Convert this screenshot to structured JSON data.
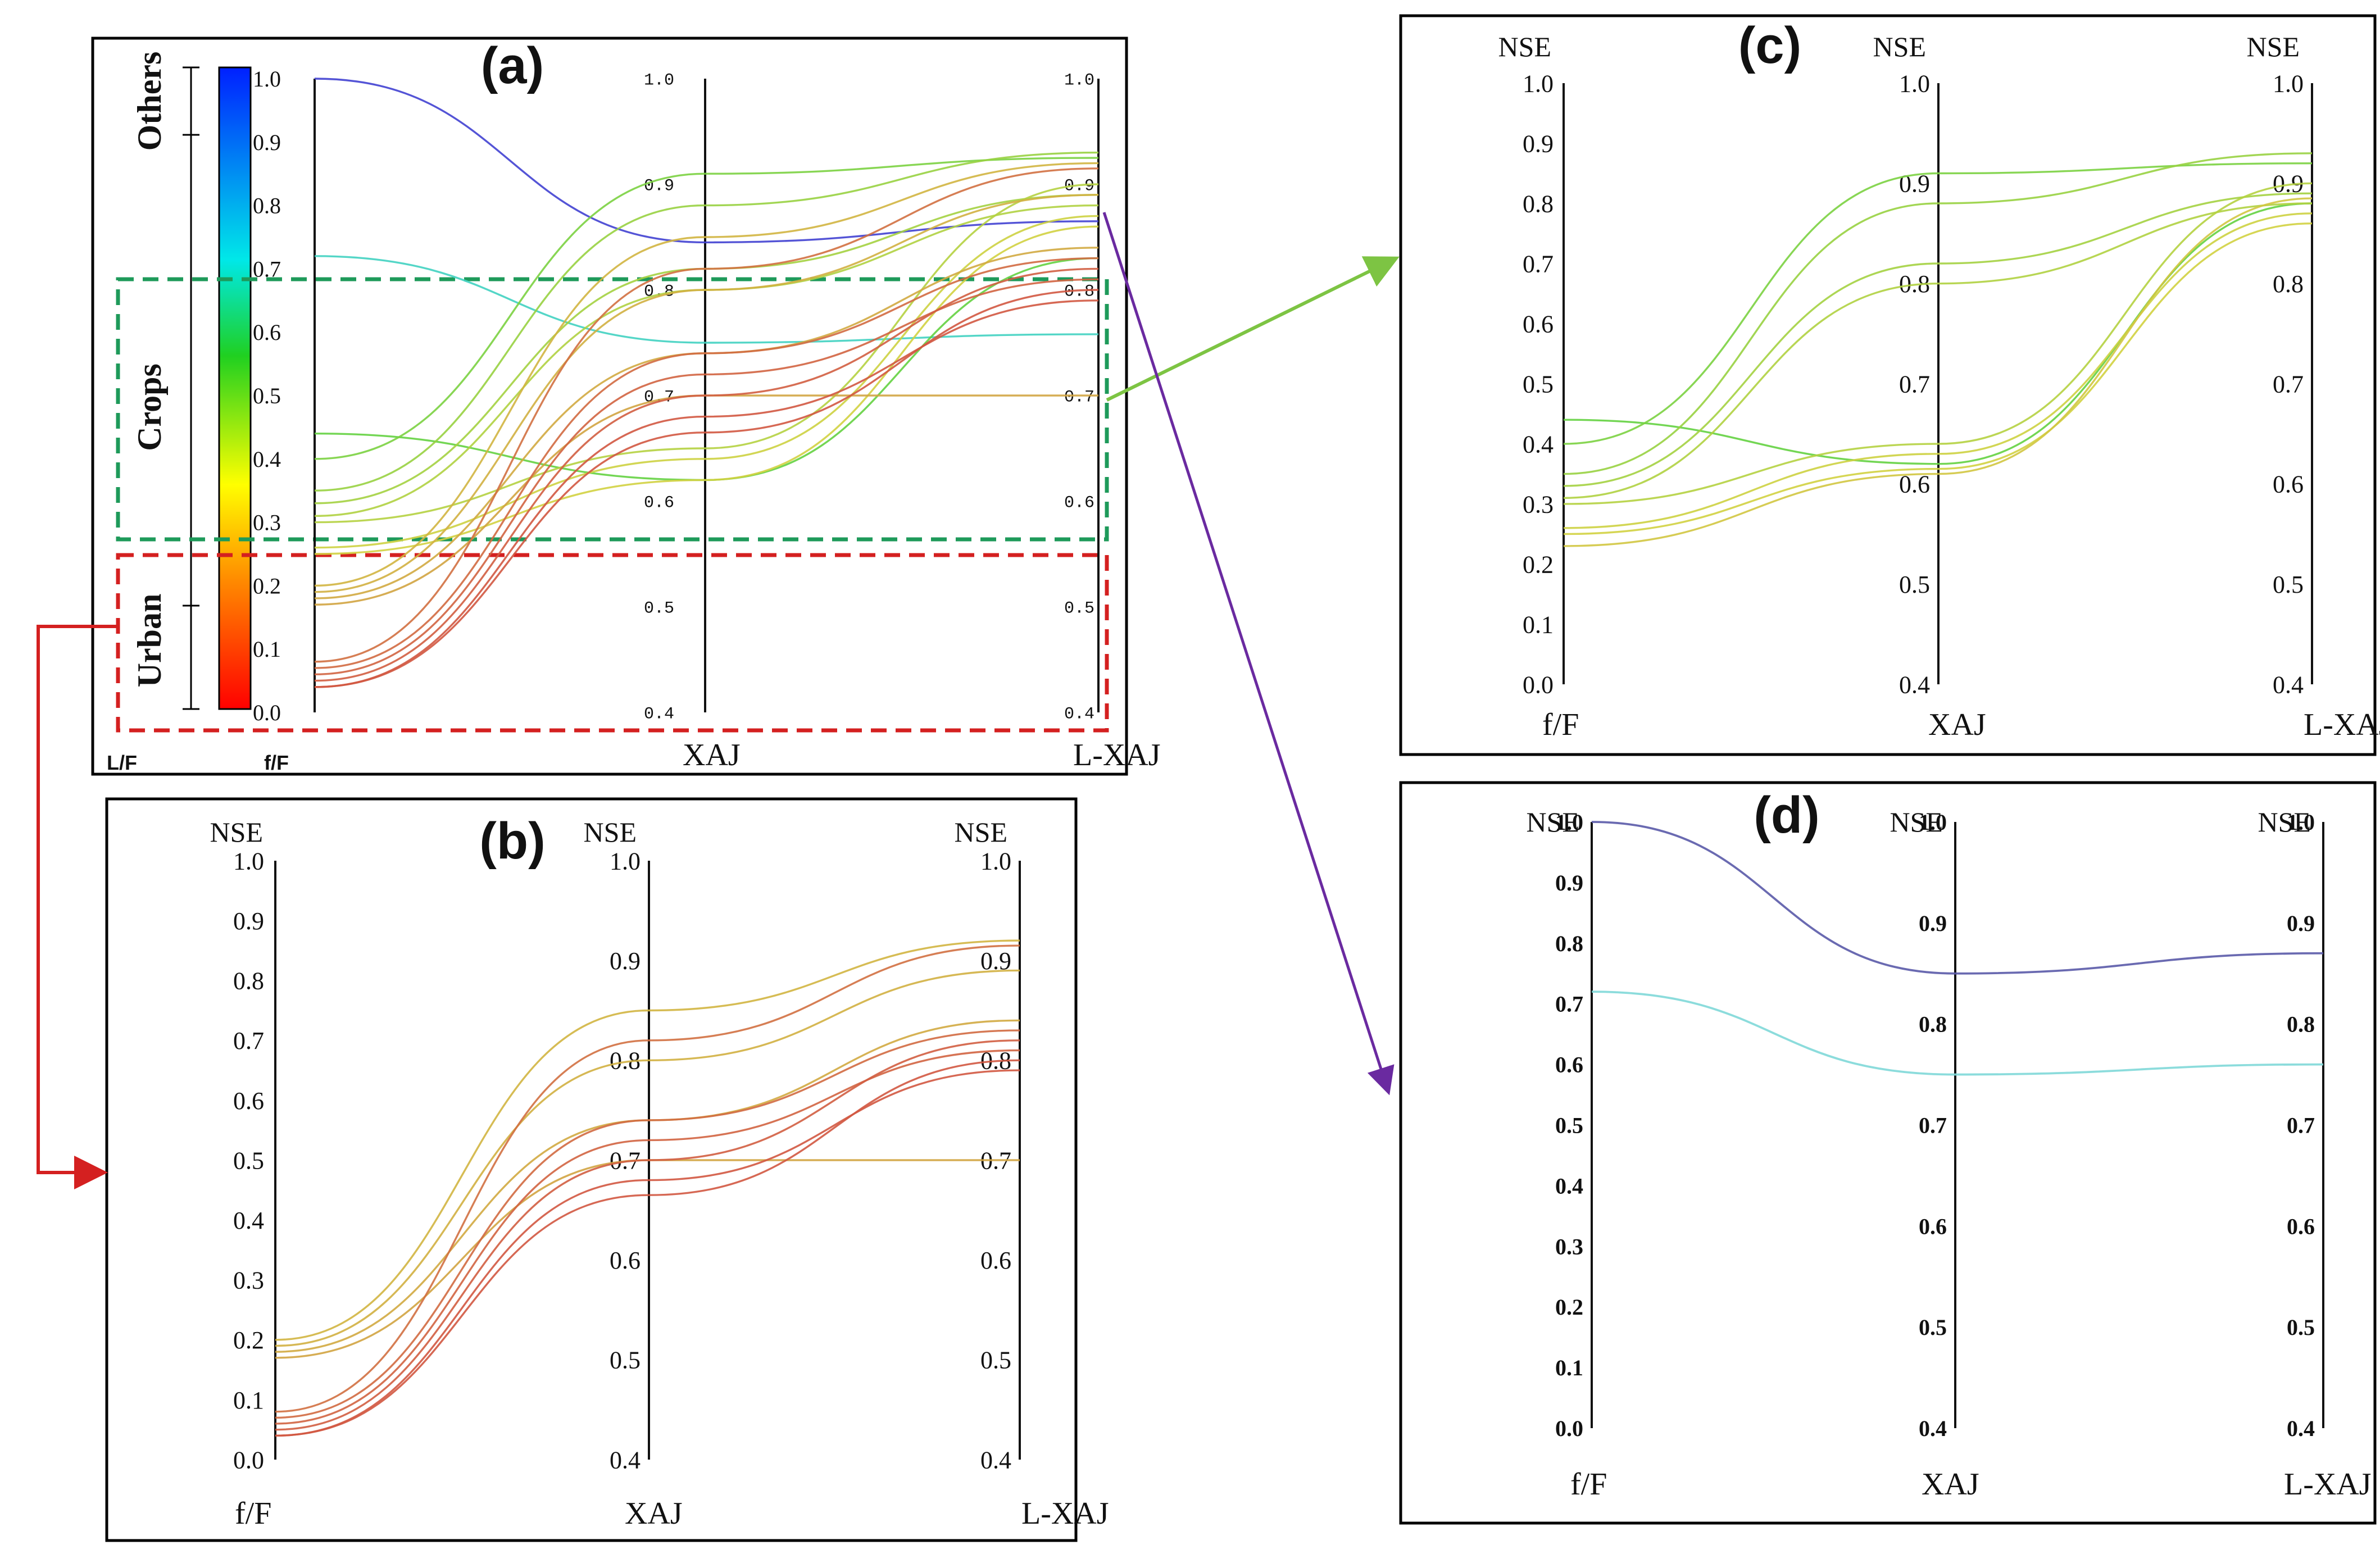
{
  "figure": {
    "panel_a_title": "(a)",
    "panel_b_title": "(b)",
    "panel_c_title": "(c)",
    "panel_d_title": "(d)"
  },
  "labels": {
    "nse": "NSE",
    "ff": "f/F",
    "xaj": "XAJ",
    "lxaj": "L-XAJ",
    "lf": "L/F",
    "ff_bold": "f/F"
  },
  "groups": {
    "others": "Others",
    "crops": "Crops",
    "urban": "Urban"
  },
  "colors": {
    "crops_box": "#1e9a5a",
    "urban_box": "#d42020",
    "arrow_c": "#7dc443",
    "arrow_d": "#6a2aa0",
    "arrow_b": "#d42020",
    "colorbar_top": "#0020ff",
    "colorbar_bottom": "#ff0000"
  },
  "colorbar_ticks": [
    "1.0",
    "0.9",
    "0.8",
    "0.7",
    "0.6",
    "0.5",
    "0.4",
    "0.3",
    "0.2",
    "0.1",
    "0.0"
  ],
  "chart_data": [
    {
      "panel": "a",
      "type": "parallel-coordinates",
      "axes": [
        {
          "name": "f/F",
          "range": [
            0,
            1
          ],
          "ticks": [
            "1.0",
            "0.9",
            "0.8",
            "0.7",
            "0.6",
            "0.5",
            "0.4",
            "0.3",
            "0.2",
            "0.1",
            "0.0"
          ]
        },
        {
          "name": "XAJ",
          "range": [
            0.4,
            1.0
          ],
          "ticks": [
            "1.0",
            "0.9",
            "0.8",
            "0.7",
            "0.6",
            "0.5",
            "0.4"
          ]
        },
        {
          "name": "L-XAJ",
          "range": [
            0.4,
            1.0
          ],
          "ticks": [
            "1.0",
            "0.9",
            "0.8",
            "0.7",
            "0.6",
            "0.5",
            "0.4"
          ]
        }
      ],
      "lines": [
        {
          "ff": 1.0,
          "xaj": 0.845,
          "lxaj": 0.865
        },
        {
          "ff": 0.72,
          "xaj": 0.75,
          "lxaj": 0.758
        },
        {
          "ff": 0.44,
          "xaj": 0.62,
          "lxaj": 0.83
        },
        {
          "ff": 0.4,
          "xaj": 0.91,
          "lxaj": 0.925
        },
        {
          "ff": 0.35,
          "xaj": 0.88,
          "lxaj": 0.93
        },
        {
          "ff": 0.33,
          "xaj": 0.82,
          "lxaj": 0.89
        },
        {
          "ff": 0.31,
          "xaj": 0.8,
          "lxaj": 0.88
        },
        {
          "ff": 0.3,
          "xaj": 0.65,
          "lxaj": 0.9
        },
        {
          "ff": 0.26,
          "xaj": 0.64,
          "lxaj": 0.87
        },
        {
          "ff": 0.25,
          "xaj": 0.62,
          "lxaj": 0.86
        },
        {
          "ff": 0.2,
          "xaj": 0.85,
          "lxaj": 0.92
        },
        {
          "ff": 0.19,
          "xaj": 0.8,
          "lxaj": 0.89
        },
        {
          "ff": 0.18,
          "xaj": 0.74,
          "lxaj": 0.84
        },
        {
          "ff": 0.17,
          "xaj": 0.7,
          "lxaj": 0.7
        },
        {
          "ff": 0.08,
          "xaj": 0.82,
          "lxaj": 0.915
        },
        {
          "ff": 0.07,
          "xaj": 0.74,
          "lxaj": 0.83
        },
        {
          "ff": 0.06,
          "xaj": 0.72,
          "lxaj": 0.81
        },
        {
          "ff": 0.05,
          "xaj": 0.7,
          "lxaj": 0.82
        },
        {
          "ff": 0.04,
          "xaj": 0.68,
          "lxaj": 0.79
        },
        {
          "ff": 0.04,
          "xaj": 0.665,
          "lxaj": 0.8
        }
      ]
    },
    {
      "panel": "b",
      "type": "parallel-coordinates",
      "axes": [
        {
          "name": "f/F",
          "range": [
            0,
            1
          ],
          "ticks": [
            "1.0",
            "0.9",
            "0.8",
            "0.7",
            "0.6",
            "0.5",
            "0.4",
            "0.3",
            "0.2",
            "0.1",
            "0.0"
          ]
        },
        {
          "name": "XAJ",
          "range": [
            0.4,
            1.0
          ],
          "ticks": [
            "1.0",
            "0.9",
            "0.8",
            "0.7",
            "0.6",
            "0.5",
            "0.4"
          ]
        },
        {
          "name": "L-XAJ",
          "range": [
            0.4,
            1.0
          ],
          "ticks": [
            "1.0",
            "0.9",
            "0.8",
            "0.7",
            "0.6",
            "0.5",
            "0.4"
          ]
        }
      ],
      "lines": [
        {
          "ff": 0.2,
          "xaj": 0.85,
          "lxaj": 0.92
        },
        {
          "ff": 0.19,
          "xaj": 0.8,
          "lxaj": 0.89
        },
        {
          "ff": 0.18,
          "xaj": 0.74,
          "lxaj": 0.84
        },
        {
          "ff": 0.17,
          "xaj": 0.7,
          "lxaj": 0.7
        },
        {
          "ff": 0.08,
          "xaj": 0.82,
          "lxaj": 0.915
        },
        {
          "ff": 0.07,
          "xaj": 0.74,
          "lxaj": 0.83
        },
        {
          "ff": 0.06,
          "xaj": 0.72,
          "lxaj": 0.81
        },
        {
          "ff": 0.05,
          "xaj": 0.7,
          "lxaj": 0.82
        },
        {
          "ff": 0.04,
          "xaj": 0.68,
          "lxaj": 0.79
        },
        {
          "ff": 0.04,
          "xaj": 0.665,
          "lxaj": 0.8
        }
      ]
    },
    {
      "panel": "c",
      "type": "parallel-coordinates",
      "axes": [
        {
          "name": "f/F",
          "range": [
            0,
            1
          ],
          "ticks": [
            "1.0",
            "0.9",
            "0.8",
            "0.7",
            "0.6",
            "0.5",
            "0.4",
            "0.3",
            "0.2",
            "0.1",
            "0.0"
          ]
        },
        {
          "name": "XAJ",
          "range": [
            0.4,
            1.0
          ],
          "ticks": [
            "1.0",
            "0.9",
            "0.8",
            "0.7",
            "0.6",
            "0.5",
            "0.4"
          ]
        },
        {
          "name": "L-XAJ",
          "range": [
            0.4,
            1.0
          ],
          "ticks": [
            "1.0",
            "0.9",
            "0.8",
            "0.7",
            "0.6",
            "0.5",
            "0.4"
          ]
        }
      ],
      "lines": [
        {
          "ff": 0.44,
          "xaj": 0.62,
          "lxaj": 0.88
        },
        {
          "ff": 0.4,
          "xaj": 0.91,
          "lxaj": 0.92
        },
        {
          "ff": 0.35,
          "xaj": 0.88,
          "lxaj": 0.93
        },
        {
          "ff": 0.33,
          "xaj": 0.82,
          "lxaj": 0.89
        },
        {
          "ff": 0.31,
          "xaj": 0.8,
          "lxaj": 0.88
        },
        {
          "ff": 0.3,
          "xaj": 0.64,
          "lxaj": 0.9
        },
        {
          "ff": 0.26,
          "xaj": 0.63,
          "lxaj": 0.87
        },
        {
          "ff": 0.25,
          "xaj": 0.615,
          "lxaj": 0.86
        },
        {
          "ff": 0.23,
          "xaj": 0.61,
          "lxaj": 0.885
        }
      ]
    },
    {
      "panel": "d",
      "type": "parallel-coordinates",
      "axes": [
        {
          "name": "f/F",
          "range": [
            0,
            1
          ],
          "ticks": [
            "1.0",
            "0.9",
            "0.8",
            "0.7",
            "0.6",
            "0.5",
            "0.4",
            "0.3",
            "0.2",
            "0.1",
            "0.0"
          ]
        },
        {
          "name": "XAJ",
          "range": [
            0.4,
            1.0
          ],
          "ticks": [
            "1.0",
            "0.9",
            "0.8",
            "0.7",
            "0.6",
            "0.5",
            "0.4"
          ]
        },
        {
          "name": "L-XAJ",
          "range": [
            0.4,
            1.0
          ],
          "ticks": [
            "1.0",
            "0.9",
            "0.8",
            "0.7",
            "0.6",
            "0.5",
            "0.4"
          ]
        }
      ],
      "lines": [
        {
          "ff": 1.0,
          "xaj": 0.85,
          "lxaj": 0.87
        },
        {
          "ff": 0.72,
          "xaj": 0.75,
          "lxaj": 0.76
        }
      ]
    }
  ]
}
